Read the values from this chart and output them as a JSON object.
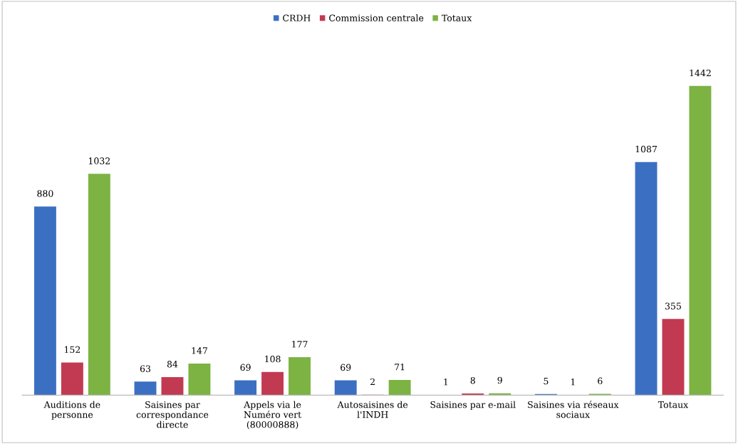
{
  "chart_data": {
    "type": "bar",
    "categories": [
      "Auditions de\npersonne",
      "Saisines par\ncorrespondance\ndirecte",
      "Appels via le\nNuméro vert\n(80000888)",
      "Autosaisines de\nl'INDH",
      "Saisines par e-mail",
      "Saisines via réseaux\nsociaux",
      "Totaux"
    ],
    "series": [
      {
        "name": "CRDH",
        "color": "#3b6fc2",
        "values": [
          880,
          63,
          69,
          69,
          1,
          5,
          1087
        ]
      },
      {
        "name": "Commission centrale",
        "color": "#c23a52",
        "values": [
          152,
          84,
          108,
          2,
          8,
          1,
          355
        ]
      },
      {
        "name": "Totaux",
        "color": "#7cb342",
        "values": [
          1032,
          147,
          177,
          71,
          9,
          6,
          1442
        ]
      }
    ],
    "data_labels": true,
    "legend": "top",
    "tick_labels": "x",
    "grid": false
  }
}
